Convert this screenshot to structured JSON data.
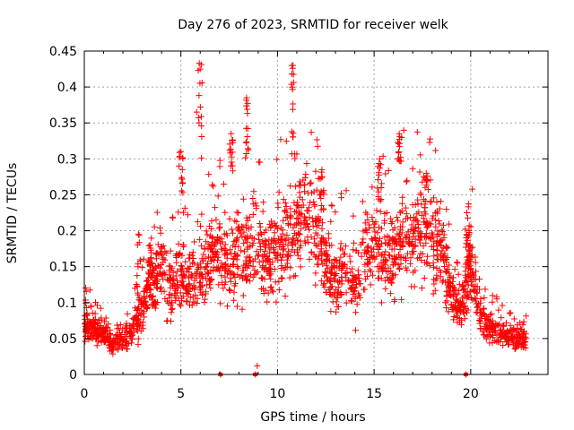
{
  "chart_data": {
    "type": "scatter",
    "title": "Day 276 of 2023, SRMTID for receiver welk",
    "xlabel": "GPS time / hours",
    "ylabel": "SRMTID / TECUs",
    "xlim": [
      0,
      24
    ],
    "ylim": [
      0,
      0.45
    ],
    "xticks": [
      0,
      5,
      10,
      15,
      20
    ],
    "xtick_labels": [
      "0",
      "5",
      "10",
      "15",
      "20"
    ],
    "yticks": [
      0,
      0.05,
      0.1,
      0.15,
      0.2,
      0.25,
      0.3,
      0.35,
      0.4,
      0.45
    ],
    "ytick_labels": [
      "0",
      "0.05",
      "0.1",
      "0.15",
      "0.2",
      "0.25",
      "0.3",
      "0.35",
      "0.4",
      "0.45"
    ],
    "grid": true,
    "marker": "+",
    "series": [
      {
        "name": "SRMTID",
        "color": "#ff0000",
        "trend": {
          "x": [
            0,
            0.5,
            1,
            1.5,
            2,
            2.5,
            3,
            3.5,
            4,
            4.5,
            5,
            5.5,
            6,
            6.5,
            7,
            7.5,
            8,
            8.5,
            9,
            9.5,
            10,
            10.5,
            11,
            11.5,
            12,
            12.5,
            13,
            13.5,
            14,
            14.5,
            15,
            15.5,
            16,
            16.5,
            17,
            17.5,
            18,
            18.5,
            19,
            19.5,
            20,
            20.5,
            21,
            21.5,
            22,
            22.5,
            22.9
          ],
          "y": [
            0.07,
            0.065,
            0.055,
            0.045,
            0.05,
            0.06,
            0.09,
            0.13,
            0.15,
            0.12,
            0.14,
            0.13,
            0.15,
            0.16,
            0.17,
            0.14,
            0.17,
            0.18,
            0.17,
            0.16,
            0.18,
            0.19,
            0.21,
            0.22,
            0.2,
            0.15,
            0.13,
            0.15,
            0.12,
            0.17,
            0.18,
            0.17,
            0.16,
            0.19,
            0.19,
            0.2,
            0.2,
            0.17,
            0.1,
            0.09,
            0.16,
            0.08,
            0.065,
            0.06,
            0.05,
            0.05,
            0.05
          ]
        },
        "bursts": [
          {
            "x": [
              5.8,
              6.1
            ],
            "y": [
              0.3,
              0.433
            ]
          },
          {
            "x": [
              4.9,
              5.1
            ],
            "y": [
              0.25,
              0.31
            ]
          },
          {
            "x": [
              8.3,
              8.5
            ],
            "y": [
              0.3,
              0.385
            ]
          },
          {
            "x": [
              7.5,
              7.7
            ],
            "y": [
              0.28,
              0.335
            ]
          },
          {
            "x": [
              10.7,
              10.9
            ],
            "y": [
              0.3,
              0.43
            ]
          },
          {
            "x": [
              16.2,
              16.4
            ],
            "y": [
              0.29,
              0.335
            ]
          },
          {
            "x": [
              15.2,
              15.4
            ],
            "y": [
              0.24,
              0.3
            ]
          },
          {
            "x": [
              17.6,
              17.8
            ],
            "y": [
              0.2,
              0.28
            ]
          },
          {
            "x": [
              19.7,
              19.9
            ],
            "y": [
              0.15,
              0.225
            ]
          },
          {
            "x": [
              12.2,
              12.4
            ],
            "y": [
              0.22,
              0.285
            ]
          },
          {
            "x": [
              3.3,
              3.5
            ],
            "y": [
              0.12,
              0.18
            ]
          },
          {
            "x": [
              2.7,
              2.9
            ],
            "y": [
              0.1,
              0.195
            ]
          }
        ],
        "zero_points": [
          {
            "x": 7.05,
            "y": 0
          },
          {
            "x": 8.85,
            "y": 0
          },
          {
            "x": 8.95,
            "y": 0.012
          },
          {
            "x": 19.75,
            "y": 0
          }
        ],
        "count": 2200,
        "seed": 276
      }
    ]
  }
}
